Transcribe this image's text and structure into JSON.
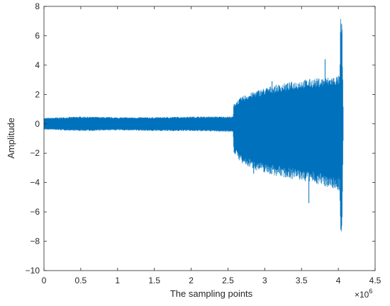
{
  "chart_data": {
    "type": "line",
    "title": "",
    "xlabel": "The sampling points",
    "ylabel": "Amplitude",
    "x_multiplier_label": "×10",
    "x_multiplier_exponent": "6",
    "xlim": [
      0,
      4.5
    ],
    "ylim": [
      -10,
      8
    ],
    "x_ticks": [
      "0",
      "0.5",
      "1",
      "1.5",
      "2",
      "2.5",
      "3",
      "3.5",
      "4",
      "4.5"
    ],
    "y_ticks": [
      "8",
      "6",
      "4",
      "2",
      "0",
      "−2",
      "−4",
      "−6",
      "−8",
      "−10"
    ],
    "x_tick_values": [
      0,
      0.5,
      1,
      1.5,
      2,
      2.5,
      3,
      3.5,
      4,
      4.5
    ],
    "y_tick_values": [
      8,
      6,
      4,
      2,
      0,
      -2,
      -4,
      -6,
      -8,
      -10
    ],
    "grid": false,
    "series_color": "#0072BD",
    "envelope": {
      "x": [
        0,
        0.5,
        1.0,
        1.5,
        2.0,
        2.5,
        2.57,
        2.58,
        2.7,
        2.9,
        3.1,
        3.3,
        3.5,
        3.7,
        3.9,
        4.02,
        4.03,
        4.05,
        4.07
      ],
      "upper": [
        0.4,
        0.5,
        0.45,
        0.45,
        0.5,
        0.5,
        0.5,
        1.4,
        1.9,
        2.3,
        2.6,
        2.8,
        3.0,
        3.1,
        3.2,
        3.3,
        7.3,
        7.2,
        0
      ],
      "lower": [
        -0.4,
        -0.5,
        -0.45,
        -0.5,
        -0.5,
        -0.55,
        -0.55,
        -2.0,
        -2.8,
        -3.2,
        -3.5,
        -3.7,
        -3.9,
        -4.1,
        -4.4,
        -4.6,
        -8.0,
        -7.8,
        0
      ]
    },
    "spikes": [
      {
        "x": 3.6,
        "y": -5.4
      },
      {
        "x": 3.82,
        "y": 4.4
      },
      {
        "x": 3.1,
        "y": 2.9
      },
      {
        "x": 2.85,
        "y": -3.4
      }
    ]
  }
}
